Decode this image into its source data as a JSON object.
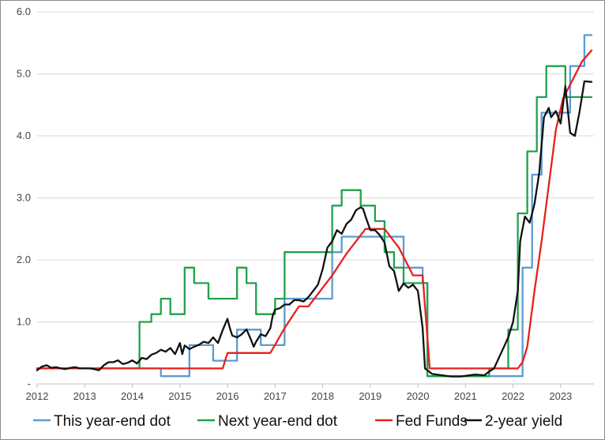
{
  "chart_data": {
    "type": "line",
    "title": "",
    "xlabel": "",
    "ylabel": "",
    "xlim": [
      2012.0,
      2023.7
    ],
    "ylim": [
      0,
      6
    ],
    "y_ticks": [
      {
        "value": 0,
        "label": "-"
      },
      {
        "value": 1,
        "label": "1.0"
      },
      {
        "value": 2,
        "label": "2.0"
      },
      {
        "value": 3,
        "label": "3.0"
      },
      {
        "value": 4,
        "label": "4.0"
      },
      {
        "value": 5,
        "label": "5.0"
      },
      {
        "value": 6,
        "label": "6.0"
      }
    ],
    "x_ticks": [
      {
        "value": 2012,
        "label": "2012"
      },
      {
        "value": 2013,
        "label": "2013"
      },
      {
        "value": 2014,
        "label": "2014"
      },
      {
        "value": 2015,
        "label": "2015"
      },
      {
        "value": 2016,
        "label": "2016"
      },
      {
        "value": 2017,
        "label": "2017"
      },
      {
        "value": 2018,
        "label": "2018"
      },
      {
        "value": 2019,
        "label": "2019"
      },
      {
        "value": 2020,
        "label": "2020"
      },
      {
        "value": 2021,
        "label": "2021"
      },
      {
        "value": 2022,
        "label": "2022"
      },
      {
        "value": 2023,
        "label": "2023"
      }
    ],
    "grid": {
      "horizontal": true,
      "vertical": false
    },
    "legend_position": "bottom",
    "series": [
      {
        "name": "This year-end dot",
        "color": "#5b9bd5",
        "step": true,
        "points": [
          [
            2012.0,
            0.25
          ],
          [
            2014.5,
            0.25
          ],
          [
            2014.6,
            0.125
          ],
          [
            2015.1,
            0.125
          ],
          [
            2015.2,
            0.625
          ],
          [
            2015.6,
            0.625
          ],
          [
            2015.7,
            0.375
          ],
          [
            2016.1,
            0.375
          ],
          [
            2016.2,
            0.875
          ],
          [
            2016.6,
            0.875
          ],
          [
            2016.7,
            0.625
          ],
          [
            2017.1,
            0.625
          ],
          [
            2017.2,
            1.375
          ],
          [
            2018.1,
            1.375
          ],
          [
            2018.2,
            2.125
          ],
          [
            2018.4,
            2.375
          ],
          [
            2019.1,
            2.375
          ],
          [
            2019.5,
            2.375
          ],
          [
            2019.7,
            1.875
          ],
          [
            2020.1,
            1.625
          ],
          [
            2020.2,
            0.125
          ],
          [
            2022.1,
            0.125
          ],
          [
            2022.2,
            1.875
          ],
          [
            2022.4,
            3.375
          ],
          [
            2022.6,
            4.375
          ],
          [
            2023.1,
            4.375
          ],
          [
            2023.2,
            5.125
          ],
          [
            2023.5,
            5.625
          ],
          [
            2023.65,
            5.625
          ]
        ]
      },
      {
        "name": "Next year-end dot",
        "color": "#1fa24a",
        "step": true,
        "points": [
          [
            2012.0,
            0.25
          ],
          [
            2014.1,
            0.25
          ],
          [
            2014.15,
            1.0
          ],
          [
            2014.4,
            1.125
          ],
          [
            2014.6,
            1.375
          ],
          [
            2014.8,
            1.125
          ],
          [
            2015.1,
            1.875
          ],
          [
            2015.3,
            1.625
          ],
          [
            2015.6,
            1.375
          ],
          [
            2016.1,
            1.375
          ],
          [
            2016.2,
            1.875
          ],
          [
            2016.4,
            1.625
          ],
          [
            2016.6,
            1.125
          ],
          [
            2016.9,
            1.125
          ],
          [
            2017.0,
            1.375
          ],
          [
            2017.2,
            2.125
          ],
          [
            2018.1,
            2.125
          ],
          [
            2018.2,
            2.875
          ],
          [
            2018.4,
            3.125
          ],
          [
            2018.8,
            2.875
          ],
          [
            2019.1,
            2.625
          ],
          [
            2019.3,
            2.125
          ],
          [
            2019.5,
            1.875
          ],
          [
            2019.7,
            1.625
          ],
          [
            2020.1,
            1.625
          ],
          [
            2020.2,
            0.125
          ],
          [
            2021.4,
            0.125
          ],
          [
            2021.5,
            0.25
          ],
          [
            2021.9,
            0.875
          ],
          [
            2022.1,
            2.75
          ],
          [
            2022.3,
            3.75
          ],
          [
            2022.5,
            4.625
          ],
          [
            2022.7,
            5.125
          ],
          [
            2022.9,
            5.125
          ],
          [
            2023.1,
            4.625
          ],
          [
            2023.3,
            4.625
          ],
          [
            2023.65,
            4.625
          ]
        ]
      },
      {
        "name": "Fed Funds",
        "color": "#e8211c",
        "step": false,
        "points": [
          [
            2012.0,
            0.25
          ],
          [
            2015.9,
            0.25
          ],
          [
            2016.0,
            0.5
          ],
          [
            2016.9,
            0.5
          ],
          [
            2017.2,
            0.9
          ],
          [
            2017.5,
            1.25
          ],
          [
            2017.7,
            1.25
          ],
          [
            2017.9,
            1.45
          ],
          [
            2018.2,
            1.75
          ],
          [
            2018.5,
            2.1
          ],
          [
            2018.9,
            2.5
          ],
          [
            2019.3,
            2.5
          ],
          [
            2019.6,
            2.2
          ],
          [
            2019.9,
            1.75
          ],
          [
            2020.1,
            1.75
          ],
          [
            2020.25,
            0.25
          ],
          [
            2022.1,
            0.25
          ],
          [
            2022.2,
            0.35
          ],
          [
            2022.3,
            0.6
          ],
          [
            2022.45,
            1.5
          ],
          [
            2022.6,
            2.3
          ],
          [
            2022.75,
            3.2
          ],
          [
            2022.9,
            4.1
          ],
          [
            2023.05,
            4.6
          ],
          [
            2023.25,
            4.9
          ],
          [
            2023.45,
            5.2
          ],
          [
            2023.65,
            5.38
          ]
        ]
      },
      {
        "name": "2-year yield",
        "color": "#111111",
        "step": false,
        "points": [
          [
            2012.0,
            0.22
          ],
          [
            2012.1,
            0.28
          ],
          [
            2012.2,
            0.3
          ],
          [
            2012.3,
            0.26
          ],
          [
            2012.4,
            0.27
          ],
          [
            2012.5,
            0.25
          ],
          [
            2012.6,
            0.24
          ],
          [
            2012.7,
            0.26
          ],
          [
            2012.8,
            0.27
          ],
          [
            2012.9,
            0.25
          ],
          [
            2013.0,
            0.25
          ],
          [
            2013.1,
            0.25
          ],
          [
            2013.2,
            0.24
          ],
          [
            2013.3,
            0.22
          ],
          [
            2013.4,
            0.3
          ],
          [
            2013.5,
            0.35
          ],
          [
            2013.6,
            0.35
          ],
          [
            2013.7,
            0.38
          ],
          [
            2013.8,
            0.32
          ],
          [
            2013.9,
            0.34
          ],
          [
            2014.0,
            0.38
          ],
          [
            2014.1,
            0.33
          ],
          [
            2014.2,
            0.42
          ],
          [
            2014.3,
            0.4
          ],
          [
            2014.4,
            0.47
          ],
          [
            2014.5,
            0.5
          ],
          [
            2014.6,
            0.55
          ],
          [
            2014.7,
            0.52
          ],
          [
            2014.8,
            0.58
          ],
          [
            2014.9,
            0.48
          ],
          [
            2015.0,
            0.66
          ],
          [
            2015.05,
            0.48
          ],
          [
            2015.1,
            0.62
          ],
          [
            2015.2,
            0.56
          ],
          [
            2015.3,
            0.6
          ],
          [
            2015.4,
            0.63
          ],
          [
            2015.5,
            0.68
          ],
          [
            2015.6,
            0.66
          ],
          [
            2015.7,
            0.75
          ],
          [
            2015.8,
            0.66
          ],
          [
            2015.9,
            0.87
          ],
          [
            2016.0,
            1.05
          ],
          [
            2016.05,
            0.9
          ],
          [
            2016.1,
            0.78
          ],
          [
            2016.2,
            0.75
          ],
          [
            2016.3,
            0.8
          ],
          [
            2016.4,
            0.88
          ],
          [
            2016.5,
            0.7
          ],
          [
            2016.55,
            0.6
          ],
          [
            2016.6,
            0.68
          ],
          [
            2016.7,
            0.8
          ],
          [
            2016.8,
            0.77
          ],
          [
            2016.9,
            0.9
          ],
          [
            2016.95,
            1.1
          ],
          [
            2017.0,
            1.2
          ],
          [
            2017.1,
            1.22
          ],
          [
            2017.2,
            1.28
          ],
          [
            2017.3,
            1.28
          ],
          [
            2017.4,
            1.35
          ],
          [
            2017.5,
            1.35
          ],
          [
            2017.6,
            1.33
          ],
          [
            2017.7,
            1.4
          ],
          [
            2017.8,
            1.5
          ],
          [
            2017.9,
            1.6
          ],
          [
            2018.0,
            1.85
          ],
          [
            2018.1,
            2.2
          ],
          [
            2018.2,
            2.3
          ],
          [
            2018.3,
            2.48
          ],
          [
            2018.4,
            2.42
          ],
          [
            2018.5,
            2.58
          ],
          [
            2018.6,
            2.65
          ],
          [
            2018.7,
            2.8
          ],
          [
            2018.8,
            2.85
          ],
          [
            2018.85,
            2.82
          ],
          [
            2018.9,
            2.7
          ],
          [
            2019.0,
            2.48
          ],
          [
            2019.1,
            2.48
          ],
          [
            2019.2,
            2.4
          ],
          [
            2019.3,
            2.28
          ],
          [
            2019.4,
            1.9
          ],
          [
            2019.5,
            1.82
          ],
          [
            2019.6,
            1.5
          ],
          [
            2019.7,
            1.62
          ],
          [
            2019.8,
            1.55
          ],
          [
            2019.9,
            1.6
          ],
          [
            2020.0,
            1.5
          ],
          [
            2020.1,
            0.9
          ],
          [
            2020.15,
            0.25
          ],
          [
            2020.3,
            0.16
          ],
          [
            2020.5,
            0.14
          ],
          [
            2020.7,
            0.12
          ],
          [
            2020.9,
            0.12
          ],
          [
            2021.0,
            0.13
          ],
          [
            2021.2,
            0.15
          ],
          [
            2021.4,
            0.14
          ],
          [
            2021.5,
            0.2
          ],
          [
            2021.6,
            0.25
          ],
          [
            2021.75,
            0.5
          ],
          [
            2021.9,
            0.75
          ],
          [
            2022.0,
            1.0
          ],
          [
            2022.1,
            1.5
          ],
          [
            2022.15,
            2.3
          ],
          [
            2022.25,
            2.7
          ],
          [
            2022.35,
            2.6
          ],
          [
            2022.45,
            2.9
          ],
          [
            2022.55,
            3.4
          ],
          [
            2022.65,
            4.3
          ],
          [
            2022.75,
            4.45
          ],
          [
            2022.8,
            4.3
          ],
          [
            2022.9,
            4.4
          ],
          [
            2023.0,
            4.2
          ],
          [
            2023.1,
            4.8
          ],
          [
            2023.2,
            4.05
          ],
          [
            2023.3,
            4.0
          ],
          [
            2023.4,
            4.4
          ],
          [
            2023.5,
            4.88
          ],
          [
            2023.65,
            4.87
          ]
        ]
      }
    ]
  }
}
